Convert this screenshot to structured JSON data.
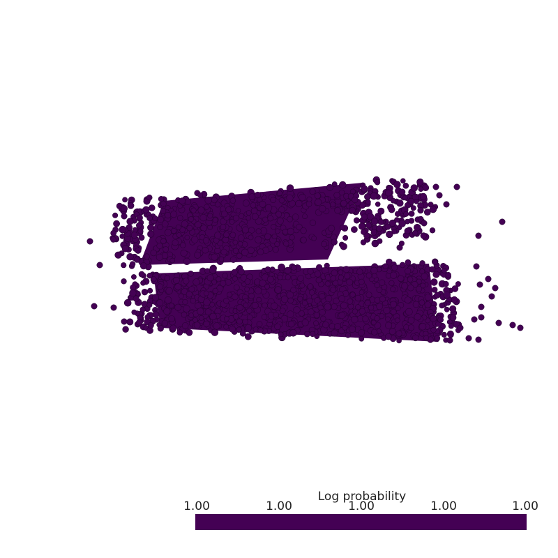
{
  "colorbar": {
    "title": "Log probability",
    "tick_labels": [
      "1.00",
      "1.00",
      "1.00",
      "1.00",
      "1.00"
    ],
    "bar_color": "#440154"
  },
  "scene": {
    "point_color": "#440154",
    "point_edge_color": "#2a0036",
    "background": "#ffffff"
  }
}
